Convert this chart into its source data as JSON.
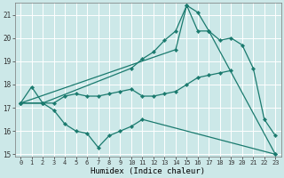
{
  "xlabel": "Humidex (Indice chaleur)",
  "bg_color": "#cce8e8",
  "grid_color": "#ffffff",
  "line_color": "#1a7a6e",
  "xlim": [
    -0.5,
    23.5
  ],
  "ylim": [
    14.9,
    21.5
  ],
  "yticks": [
    15,
    16,
    17,
    18,
    19,
    20,
    21
  ],
  "xticks": [
    0,
    1,
    2,
    3,
    4,
    5,
    6,
    7,
    8,
    9,
    10,
    11,
    12,
    13,
    14,
    15,
    16,
    17,
    18,
    19,
    20,
    21,
    22,
    23
  ],
  "lines": [
    {
      "x": [
        0,
        1,
        2,
        3,
        4,
        5,
        6,
        7,
        8,
        9,
        10,
        11,
        12,
        13,
        14,
        15,
        16,
        17,
        18,
        19
      ],
      "y": [
        17.2,
        17.9,
        17.2,
        17.2,
        17.5,
        17.6,
        17.5,
        17.5,
        17.6,
        17.7,
        17.8,
        17.5,
        17.5,
        17.6,
        17.7,
        18.0,
        18.3,
        18.4,
        18.5,
        18.6
      ]
    },
    {
      "x": [
        0,
        2,
        10,
        11,
        12,
        13,
        14,
        15,
        16,
        17,
        18,
        19,
        20,
        21,
        22,
        23
      ],
      "y": [
        17.2,
        17.2,
        18.7,
        19.1,
        19.4,
        19.9,
        20.3,
        21.4,
        21.1,
        20.3,
        19.9,
        20.0,
        19.7,
        18.7,
        16.5,
        15.8
      ]
    },
    {
      "x": [
        0,
        2,
        3,
        4,
        5,
        6,
        7,
        8,
        9,
        10,
        11,
        23
      ],
      "y": [
        17.2,
        17.2,
        16.9,
        16.3,
        16.0,
        15.9,
        15.3,
        15.8,
        16.0,
        16.2,
        16.5,
        15.0
      ]
    },
    {
      "x": [
        0,
        14,
        15,
        16,
        17,
        23
      ],
      "y": [
        17.2,
        19.5,
        21.4,
        20.3,
        20.3,
        15.0
      ]
    }
  ]
}
